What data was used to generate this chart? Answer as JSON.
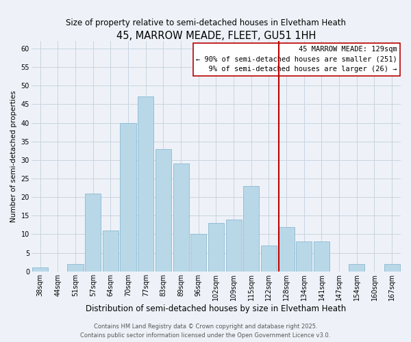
{
  "title": "45, MARROW MEADE, FLEET, GU51 1HH",
  "subtitle": "Size of property relative to semi-detached houses in Elvetham Heath",
  "xlabel": "Distribution of semi-detached houses by size in Elvetham Heath",
  "ylabel": "Number of semi-detached properties",
  "bin_labels": [
    "38sqm",
    "44sqm",
    "51sqm",
    "57sqm",
    "64sqm",
    "70sqm",
    "77sqm",
    "83sqm",
    "89sqm",
    "96sqm",
    "102sqm",
    "109sqm",
    "115sqm",
    "122sqm",
    "128sqm",
    "134sqm",
    "141sqm",
    "147sqm",
    "154sqm",
    "160sqm",
    "167sqm"
  ],
  "bar_values": [
    1,
    0,
    2,
    21,
    11,
    40,
    47,
    33,
    29,
    10,
    13,
    14,
    23,
    7,
    12,
    8,
    8,
    0,
    2,
    0,
    2
  ],
  "bar_color": "#b8d8e8",
  "bar_edge_color": "#8cb8d0",
  "grid_color": "#c8d4e0",
  "background_color": "#eef2f8",
  "vline_x_index": 14,
  "vline_color": "#bb0000",
  "annotation_text": "45 MARROW MEADE: 129sqm\n← 90% of semi-detached houses are smaller (251)\n  9% of semi-detached houses are larger (26) →",
  "annotation_box_color": "#ffffff",
  "annotation_box_edge": "#bb0000",
  "ylim": [
    0,
    62
  ],
  "yticks": [
    0,
    5,
    10,
    15,
    20,
    25,
    30,
    35,
    40,
    45,
    50,
    55,
    60
  ],
  "footer_line1": "Contains HM Land Registry data © Crown copyright and database right 2025.",
  "footer_line2": "Contains public sector information licensed under the Open Government Licence v3.0.",
  "title_fontsize": 10.5,
  "subtitle_fontsize": 8.5,
  "xlabel_fontsize": 8.5,
  "ylabel_fontsize": 7.5,
  "tick_fontsize": 7,
  "annotation_fontsize": 7.5,
  "footer_fontsize": 6
}
